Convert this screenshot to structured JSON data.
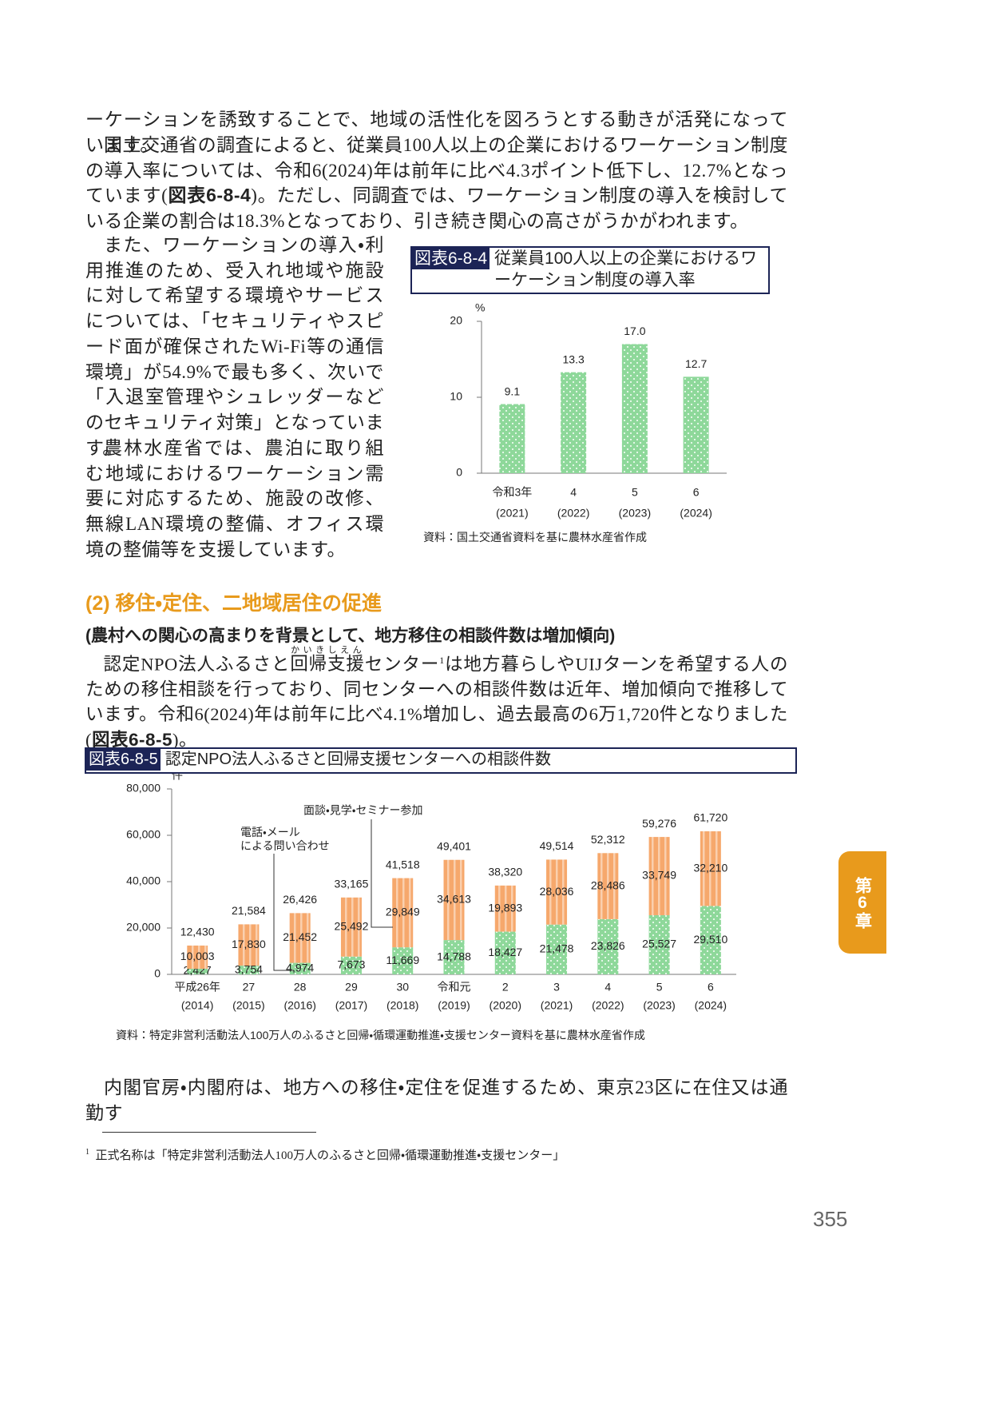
{
  "body": {
    "p1": "ーケーションを誘致することで、地域の活性化を図ろうとする動きが活発になっています。",
    "p2": {
      "before": "国土交通省の調査によると、従業員100人以上の企業におけるワーケーション制度の導入率については、令和6(2024)年は前年に比べ4.3ポイント低下し、12.7%となっています(",
      "ref": "図表6-8-4",
      "after": ")。ただし、同調査では、ワーケーション制度の導入を検討している企業の割合は18.3%となっており、引き続き関心の高さがうかがわれます。"
    },
    "p3": "また、ワーケーションの導入・利用推進のため、受入れ地域や施設に対して希望する環境やサービスについては、「セキュリティやスピード面が確保されたWi-Fi等の通信環境」が54.9%で最も多く、次いで「入退室管理やシュレッダーなどのセキュリティ対策」となっています。",
    "p4": "農林水産省では、農泊に取り組む地域におけるワーケーション需要に対応するため、施設の改修、無線LAN環境の整備、オフィス環境の整備等を支援しています。"
  },
  "section": {
    "heading": "(2) 移住・定住、二地域居住の促進",
    "subheading": "(農村への関心の高まりを背景として、地方移住の相談件数は増加傾向)",
    "p5": {
      "before": "認定NPO法人ふるさと",
      "ruby_base": "回帰支援",
      "ruby_text": "かいきしえん",
      "middle": "センター",
      "note": "1",
      "after": "は地方暮らしやUIJターンを希望する人のための移住相談を行っており、同センターへの相談件数は近年、増加傾向で推移しています。令和6(2024)年は前年に比べ4.1%増加し、過去最高の6万1,720件となりました(",
      "ref": "図表6-8-5",
      "end": ")。"
    },
    "p6": "内閣官房・内閣府は、地方への移住・定住を促進するため、東京23区に在住又は通勤す"
  },
  "footnote": {
    "mark": "1",
    "text": "正式名称は「特定非営利活動法人100万人のふるさと回帰・循環運動推進・支援センター」"
  },
  "side_tab": "第6章",
  "page_number": "355",
  "chart_data": [
    {
      "type": "bar",
      "label": "図表6-8-4",
      "title": "従業員100人以上の企業におけるワーケーション制度の導入率",
      "y_unit": "%",
      "categories": [
        "令和3年",
        "4",
        "5",
        "6"
      ],
      "category_years": [
        "(2021)",
        "(2022)",
        "(2023)",
        "(2024)"
      ],
      "values": [
        9.1,
        13.3,
        17.0,
        12.7
      ],
      "value_labels": [
        "9.1",
        "13.3",
        "17.0",
        "12.7"
      ],
      "color": "#8ed89a",
      "ylim": [
        0,
        20
      ],
      "yticks": [
        0,
        10,
        20
      ],
      "source": "資料：国土交通省資料を基に農林水産省作成"
    },
    {
      "type": "stacked_bar",
      "label": "図表6-8-5",
      "title": "認定NPO法人ふるさと回帰支援センターへの相談件数",
      "y_unit": "件",
      "categories": [
        "平成26年",
        "27",
        "28",
        "29",
        "30",
        "令和元",
        "2",
        "3",
        "4",
        "5",
        "6"
      ],
      "category_years": [
        "(2014)",
        "(2015)",
        "(2016)",
        "(2017)",
        "(2018)",
        "(2019)",
        "(2020)",
        "(2021)",
        "(2022)",
        "(2023)",
        "(2024)"
      ],
      "series": [
        {
          "name": "電話・メール\nによる問い合わせ",
          "color": "#8ed89a",
          "values": [
            2427,
            3754,
            4974,
            7673,
            11669,
            14788,
            18427,
            21478,
            23826,
            25527,
            29510
          ],
          "value_labels": [
            "2,427",
            "3,754",
            "4,974",
            "7,673",
            "11,669",
            "14,788",
            "18,427",
            "21,478",
            "23,826",
            "25,527",
            "29,510"
          ]
        },
        {
          "name": "面談・見学・セミナー参加",
          "color": "#f6a86c",
          "values": [
            10003,
            17830,
            21452,
            25492,
            29849,
            34613,
            19893,
            28036,
            28486,
            33749,
            32210
          ],
          "value_labels": [
            "10,003",
            "17,830",
            "21,452",
            "25,492",
            "29,849",
            "34,613",
            "19,893",
            "28,036",
            "28,486",
            "33,749",
            "32,210"
          ]
        }
      ],
      "totals": [
        12430,
        21584,
        26426,
        33165,
        41518,
        49401,
        38320,
        49514,
        52312,
        59276,
        61720
      ],
      "total_labels": [
        "12,430",
        "21,584",
        "26,426",
        "33,165",
        "41,518",
        "49,401",
        "38,320",
        "49,514",
        "52,312",
        "59,276",
        "61,720"
      ],
      "ylim": [
        0,
        80000
      ],
      "yticks": [
        0,
        {
          "value": 20000,
          "label": "20,000"
        },
        {
          "value": 40000,
          "label": "40,000"
        },
        {
          "value": 60000,
          "label": "60,000"
        },
        {
          "value": 80000,
          "label": "80,000"
        }
      ],
      "source": "資料：特定非営利活動法人100万人のふるさと回帰・循環運動推進・支援センター資料を基に農林水産省作成"
    }
  ]
}
